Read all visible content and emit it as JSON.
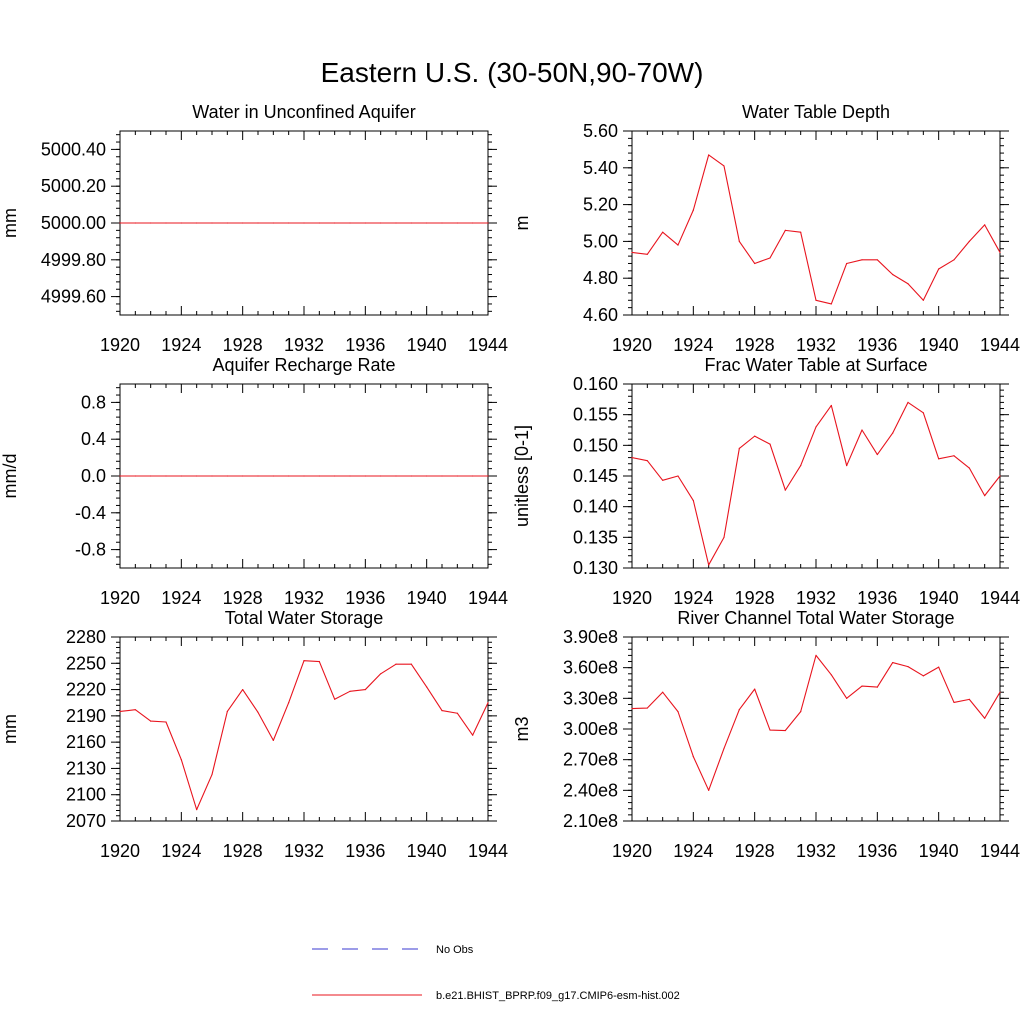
{
  "figure": {
    "title": "Eastern U.S. (30-50N,90-70W)"
  },
  "legend": {
    "entries": [
      {
        "label": "No Obs",
        "color": "#3a3ad0",
        "style": "dashed"
      },
      {
        "label": "b.e21.BHIST_BPRP.f09_g17.CMIP6-esm-hist.002",
        "color": "#e8141e",
        "style": "solid"
      }
    ]
  },
  "chart_data": [
    {
      "type": "line",
      "title": "Water in Unconfined Aquifer",
      "ylabel": "mm",
      "xlim": [
        1920,
        1944
      ],
      "ylim": [
        4999.5,
        5000.5
      ],
      "x_ticks": [
        1920,
        1924,
        1928,
        1932,
        1936,
        1940,
        1944
      ],
      "y_ticks": [
        4999.6,
        4999.8,
        5000.0,
        5000.2,
        5000.4
      ],
      "y_tick_labels": [
        "4999.60",
        "4999.80",
        "5000.00",
        "5000.20",
        "5000.40"
      ],
      "x": [
        1920,
        1921,
        1922,
        1923,
        1924,
        1925,
        1926,
        1927,
        1928,
        1929,
        1930,
        1931,
        1932,
        1933,
        1934,
        1935,
        1936,
        1937,
        1938,
        1939,
        1940,
        1941,
        1942,
        1943,
        1944
      ],
      "series": [
        {
          "color": "#e8141e",
          "values": [
            5000.0,
            5000.0,
            5000.0,
            5000.0,
            5000.0,
            5000.0,
            5000.0,
            5000.0,
            5000.0,
            5000.0,
            5000.0,
            5000.0,
            5000.0,
            5000.0,
            5000.0,
            5000.0,
            5000.0,
            5000.0,
            5000.0,
            5000.0,
            5000.0,
            5000.0,
            5000.0,
            5000.0,
            5000.0
          ]
        }
      ]
    },
    {
      "type": "line",
      "title": "Water Table Depth",
      "ylabel": "m",
      "xlim": [
        1920,
        1944
      ],
      "ylim": [
        4.6,
        5.6
      ],
      "x_ticks": [
        1920,
        1924,
        1928,
        1932,
        1936,
        1940,
        1944
      ],
      "y_ticks": [
        4.6,
        4.8,
        5.0,
        5.2,
        5.4,
        5.6
      ],
      "y_tick_labels": [
        "4.60",
        "4.80",
        "5.00",
        "5.20",
        "5.40",
        "5.60"
      ],
      "x": [
        1920,
        1921,
        1922,
        1923,
        1924,
        1925,
        1926,
        1927,
        1928,
        1929,
        1930,
        1931,
        1932,
        1933,
        1934,
        1935,
        1936,
        1937,
        1938,
        1939,
        1940,
        1941,
        1942,
        1943,
        1944
      ],
      "series": [
        {
          "color": "#e8141e",
          "values": [
            4.94,
            4.93,
            5.05,
            4.98,
            5.17,
            5.47,
            5.41,
            5.0,
            4.88,
            4.91,
            5.06,
            5.05,
            4.68,
            4.66,
            4.88,
            4.9,
            4.9,
            4.82,
            4.77,
            4.68,
            4.85,
            4.9,
            5.0,
            5.09,
            4.94
          ]
        }
      ]
    },
    {
      "type": "line",
      "title": "Aquifer Recharge Rate",
      "ylabel": "mm/d",
      "xlim": [
        1920,
        1944
      ],
      "ylim": [
        -1.0,
        1.0
      ],
      "x_ticks": [
        1920,
        1924,
        1928,
        1932,
        1936,
        1940,
        1944
      ],
      "y_ticks": [
        -0.8,
        -0.4,
        0.0,
        0.4,
        0.8
      ],
      "y_tick_labels": [
        "-0.8",
        "-0.4",
        "0.0",
        "0.4",
        "0.8"
      ],
      "x": [
        1920,
        1921,
        1922,
        1923,
        1924,
        1925,
        1926,
        1927,
        1928,
        1929,
        1930,
        1931,
        1932,
        1933,
        1934,
        1935,
        1936,
        1937,
        1938,
        1939,
        1940,
        1941,
        1942,
        1943,
        1944
      ],
      "series": [
        {
          "color": "#e8141e",
          "values": [
            0.0,
            0.0,
            0.0,
            0.0,
            0.0,
            0.0,
            0.0,
            0.0,
            0.0,
            0.0,
            0.0,
            0.0,
            0.0,
            0.0,
            0.0,
            0.0,
            0.0,
            0.0,
            0.0,
            0.0,
            0.0,
            0.0,
            0.0,
            0.0,
            0.0
          ]
        }
      ]
    },
    {
      "type": "line",
      "title": "Frac Water Table at Surface",
      "ylabel": "unitless [0-1]",
      "xlim": [
        1920,
        1944
      ],
      "ylim": [
        0.13,
        0.16
      ],
      "x_ticks": [
        1920,
        1924,
        1928,
        1932,
        1936,
        1940,
        1944
      ],
      "y_ticks": [
        0.13,
        0.135,
        0.14,
        0.145,
        0.15,
        0.155,
        0.16
      ],
      "y_tick_labels": [
        "0.130",
        "0.135",
        "0.140",
        "0.145",
        "0.150",
        "0.155",
        "0.160"
      ],
      "x": [
        1920,
        1921,
        1922,
        1923,
        1924,
        1925,
        1926,
        1927,
        1928,
        1929,
        1930,
        1931,
        1932,
        1933,
        1934,
        1935,
        1936,
        1937,
        1938,
        1939,
        1940,
        1941,
        1942,
        1943,
        1944
      ],
      "series": [
        {
          "color": "#e8141e",
          "values": [
            0.148,
            0.1475,
            0.1443,
            0.145,
            0.141,
            0.1305,
            0.135,
            0.1495,
            0.1515,
            0.1502,
            0.1427,
            0.1467,
            0.153,
            0.1565,
            0.1467,
            0.1525,
            0.1485,
            0.152,
            0.157,
            0.1553,
            0.1478,
            0.1483,
            0.1463,
            0.1418,
            0.145
          ]
        }
      ]
    },
    {
      "type": "line",
      "title": "Total Water Storage",
      "ylabel": "mm",
      "xlim": [
        1920,
        1944
      ],
      "ylim": [
        2070,
        2280
      ],
      "x_ticks": [
        1920,
        1924,
        1928,
        1932,
        1936,
        1940,
        1944
      ],
      "y_ticks": [
        2070,
        2100,
        2130,
        2160,
        2190,
        2220,
        2250,
        2280
      ],
      "y_tick_labels": [
        "2070",
        "2100",
        "2130",
        "2160",
        "2190",
        "2220",
        "2250",
        "2280"
      ],
      "x": [
        1920,
        1921,
        1922,
        1923,
        1924,
        1925,
        1926,
        1927,
        1928,
        1929,
        1930,
        1931,
        1932,
        1933,
        1934,
        1935,
        1936,
        1937,
        1938,
        1939,
        1940,
        1941,
        1942,
        1943,
        1944
      ],
      "series": [
        {
          "color": "#e8141e",
          "values": [
            2195,
            2197,
            2184,
            2183,
            2140,
            2083,
            2123,
            2195,
            2220,
            2194,
            2162,
            2205,
            2253,
            2252,
            2209,
            2218,
            2220,
            2238,
            2249,
            2249,
            2223,
            2196,
            2193,
            2168,
            2205
          ]
        }
      ]
    },
    {
      "type": "line",
      "title": "River Channel Total Water Storage",
      "ylabel": "m3",
      "xlim": [
        1920,
        1944
      ],
      "ylim": [
        210000000,
        390000000
      ],
      "x_ticks": [
        1920,
        1924,
        1928,
        1932,
        1936,
        1940,
        1944
      ],
      "y_ticks": [
        210000000,
        240000000,
        270000000,
        300000000,
        330000000,
        360000000,
        390000000
      ],
      "y_tick_labels": [
        "2.10e8",
        "2.40e8",
        "2.70e8",
        "3.00e8",
        "3.30e8",
        "3.60e8",
        "3.90e8"
      ],
      "x": [
        1920,
        1921,
        1922,
        1923,
        1924,
        1925,
        1926,
        1927,
        1928,
        1929,
        1930,
        1931,
        1932,
        1933,
        1934,
        1935,
        1936,
        1937,
        1938,
        1939,
        1940,
        1941,
        1942,
        1943,
        1944
      ],
      "series": [
        {
          "color": "#e8141e",
          "values": [
            320000000,
            320500000,
            336000000,
            317000000,
            273000000,
            240000000,
            281000000,
            319000000,
            339000000,
            299000000,
            298500000,
            317000000,
            372000000,
            353000000,
            330000000,
            342000000,
            341000000,
            365000000,
            361000000,
            352000000,
            360500000,
            326000000,
            329000000,
            310500000,
            336000000
          ]
        }
      ]
    }
  ]
}
